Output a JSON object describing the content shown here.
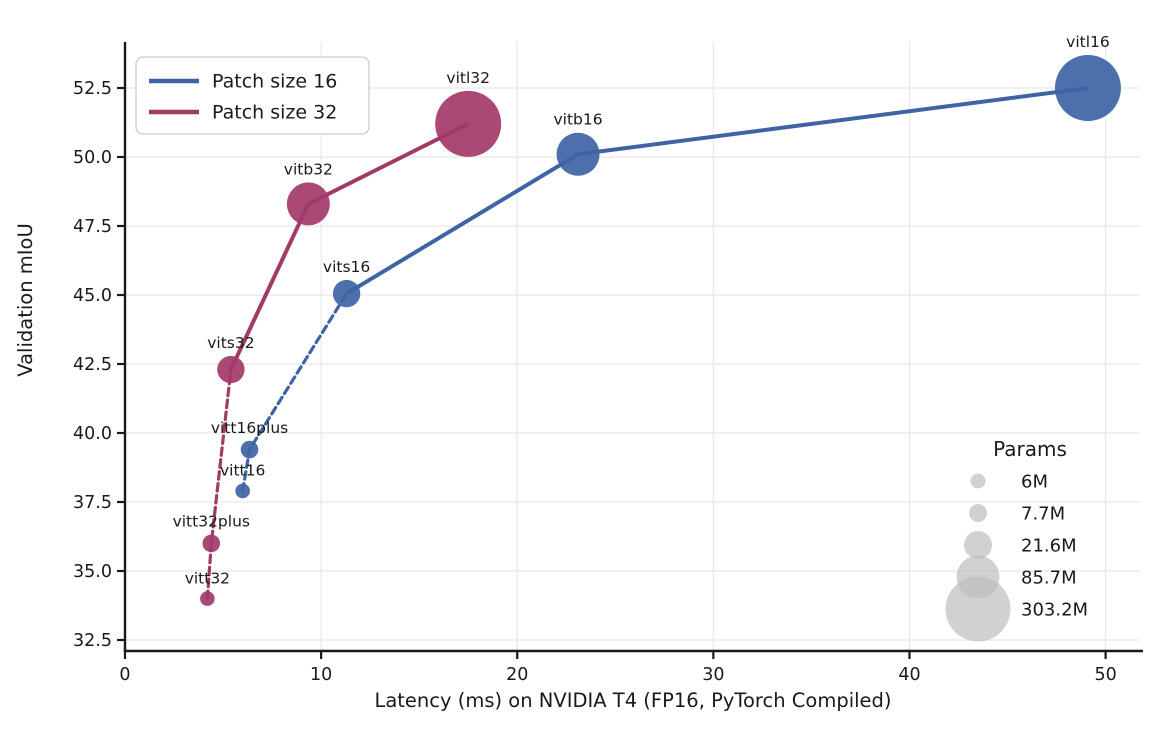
{
  "chart_data": {
    "type": "scatter",
    "title": "",
    "xlabel": "Latency (ms) on NVIDIA T4 (FP16, PyTorch Compiled)",
    "ylabel": "Validation mIoU",
    "xlim": [
      0,
      51.8
    ],
    "ylim": [
      32.1,
      54.2
    ],
    "grid": true,
    "x_ticks": [
      {
        "v": 0,
        "label": "0"
      },
      {
        "v": 10,
        "label": "10"
      },
      {
        "v": 20,
        "label": "20"
      },
      {
        "v": 30,
        "label": "30"
      },
      {
        "v": 40,
        "label": "40"
      },
      {
        "v": 50,
        "label": "50"
      }
    ],
    "y_ticks": [
      {
        "v": 32.5,
        "label": "32.5"
      },
      {
        "v": 35.0,
        "label": "35.0"
      },
      {
        "v": 37.5,
        "label": "37.5"
      },
      {
        "v": 40.0,
        "label": "40.0"
      },
      {
        "v": 42.5,
        "label": "42.5"
      },
      {
        "v": 45.0,
        "label": "45.0"
      },
      {
        "v": 47.5,
        "label": "47.5"
      },
      {
        "v": 50.0,
        "label": "50.0"
      },
      {
        "v": 52.5,
        "label": "52.5"
      }
    ],
    "legend": {
      "position": "upper-left",
      "entries": [
        {
          "label": "Patch size 16",
          "color": "#3e64a6"
        },
        {
          "label": "Patch size 32",
          "color": "#a23a68"
        }
      ]
    },
    "size_legend": {
      "title": "Params",
      "color": "#bdbdbd",
      "entries": [
        {
          "label": "6M",
          "r": 7.5
        },
        {
          "label": "7.7M",
          "r": 9
        },
        {
          "label": "21.6M",
          "r": 14
        },
        {
          "label": "85.7M",
          "r": 21.5
        },
        {
          "label": "303.2M",
          "r": 32.5
        }
      ]
    },
    "series": [
      {
        "name": "Patch size 16",
        "color": "#3e64a6",
        "dash_split_index": 2,
        "points": [
          {
            "label": "vitt16",
            "x": 6.0,
            "y": 37.9,
            "params": "6M",
            "r": 7.3
          },
          {
            "label": "vitt16plus",
            "x": 6.35,
            "y": 39.4,
            "params": "7.7M",
            "r": 8.8
          },
          {
            "label": "vits16",
            "x": 11.3,
            "y": 45.05,
            "params": "21.6M",
            "r": 13.7
          },
          {
            "label": "vitb16",
            "x": 23.1,
            "y": 50.1,
            "params": "85.7M",
            "r": 21.5
          },
          {
            "label": "vitl16",
            "x": 49.1,
            "y": 52.5,
            "params": "303.2M",
            "r": 33
          }
        ]
      },
      {
        "name": "Patch size 32",
        "color": "#a23a68",
        "dash_split_index": 2,
        "points": [
          {
            "label": "vitt32",
            "x": 4.2,
            "y": 34.0,
            "params": "6M",
            "r": 7.3
          },
          {
            "label": "vitt32plus",
            "x": 4.4,
            "y": 36.0,
            "params": "7.7M",
            "r": 8.8
          },
          {
            "label": "vits32",
            "x": 5.4,
            "y": 42.3,
            "params": "21.6M",
            "r": 13.7
          },
          {
            "label": "vitb32",
            "x": 9.35,
            "y": 48.3,
            "params": "85.7M",
            "r": 21.5
          },
          {
            "label": "vitl32",
            "x": 17.5,
            "y": 51.2,
            "params": "303.2M",
            "r": 33
          }
        ]
      }
    ]
  }
}
